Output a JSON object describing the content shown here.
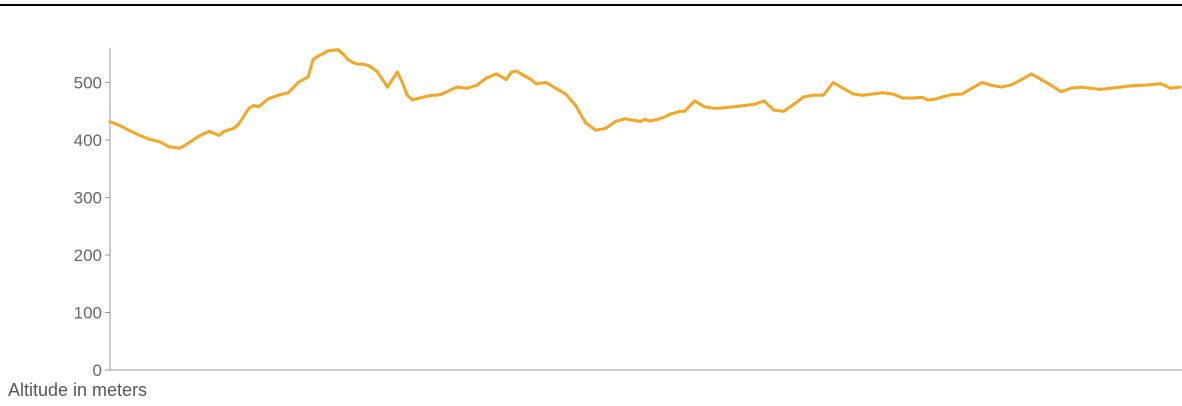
{
  "chart_data": {
    "type": "line",
    "title": "",
    "xlabel": "",
    "ylabel": "Altitude in meters",
    "ylim": [
      0,
      560
    ],
    "yticks": [
      0,
      100,
      200,
      300,
      400,
      500
    ],
    "grid": false,
    "series": [
      {
        "color": "#F5A623",
        "x": [
          0,
          10,
          20,
          30,
          40,
          50,
          60,
          70,
          75,
          80,
          90,
          100,
          110,
          115,
          120,
          125,
          130,
          140,
          145,
          150,
          160,
          170,
          180,
          190,
          200,
          205,
          210,
          215,
          220,
          225,
          230,
          235,
          240,
          245,
          250,
          255,
          260,
          265,
          270,
          275,
          280,
          285,
          290,
          295,
          300,
          305,
          310,
          315,
          320,
          325,
          330,
          335,
          340,
          345,
          350,
          360,
          370,
          380,
          390,
          400,
          405,
          410,
          415,
          420,
          425,
          430,
          440,
          450,
          460,
          470,
          480,
          490,
          500,
          510,
          520,
          525,
          530,
          535,
          540,
          545,
          550,
          555,
          560,
          565,
          570,
          575,
          580,
          590,
          600,
          610,
          620,
          630,
          640,
          650,
          660,
          670,
          680,
          690,
          700,
          710,
          720,
          730,
          740,
          750,
          760,
          770,
          780,
          790,
          800,
          810,
          820,
          825,
          830,
          835,
          840,
          850,
          860,
          870,
          880,
          890,
          900,
          910,
          920,
          930,
          940,
          950,
          960,
          970,
          980,
          990,
          1000,
          1010,
          1020,
          1030,
          1040,
          1050,
          1060,
          1065,
          1070,
          1080
        ],
        "y": [
          432,
          425,
          416,
          408,
          401,
          397,
          388,
          386,
          390,
          396,
          407,
          415,
          408,
          415,
          418,
          420,
          428,
          455,
          460,
          458,
          472,
          478,
          482,
          500,
          510,
          540,
          546,
          550,
          555,
          556,
          557,
          550,
          540,
          535,
          532,
          532,
          530,
          525,
          518,
          505,
          492,
          505,
          518,
          500,
          478,
          470,
          472,
          474,
          476,
          478,
          478,
          480,
          484,
          488,
          492,
          490,
          495,
          508,
          515,
          505,
          518,
          520,
          515,
          510,
          505,
          498,
          500,
          490,
          480,
          460,
          430,
          417,
          420,
          432,
          437,
          435,
          434,
          432,
          436,
          433,
          435,
          437,
          440,
          445,
          447,
          450,
          450,
          468,
          458,
          455,
          456,
          458,
          460,
          462,
          468,
          452,
          450,
          462,
          475,
          478,
          478,
          500,
          490,
          480,
          478,
          480,
          482,
          480,
          473,
          473,
          474,
          470,
          470,
          472,
          475,
          479,
          480,
          490,
          500,
          495,
          492,
          496,
          505,
          515,
          505,
          495,
          484,
          490,
          492,
          490,
          488,
          490,
          492,
          494,
          495,
          496,
          498,
          495,
          490,
          492
        ]
      }
    ]
  }
}
